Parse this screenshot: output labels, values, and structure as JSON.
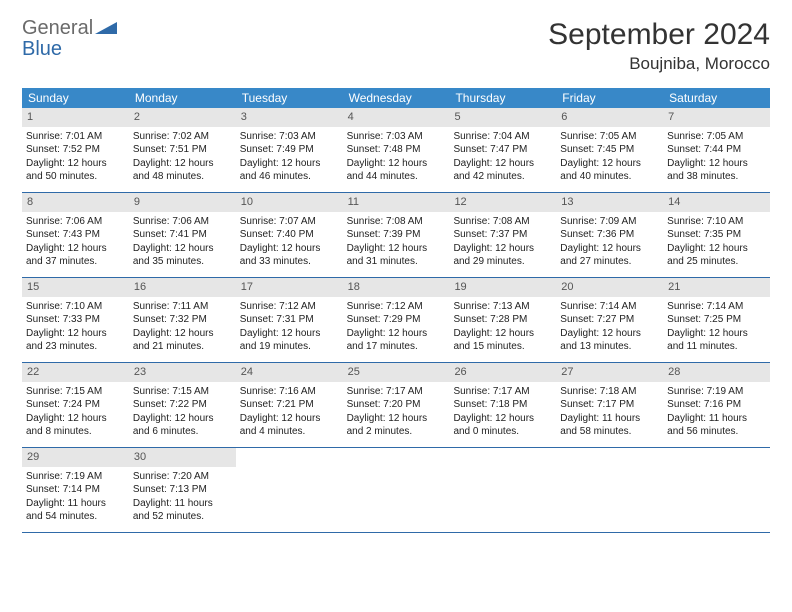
{
  "brand": {
    "part1": "General",
    "part2": "Blue"
  },
  "title": "September 2024",
  "location": "Boujniba, Morocco",
  "colors": {
    "header_bg": "#3888c8",
    "header_text": "#ffffff",
    "daynum_bg": "#e6e6e6",
    "border": "#2f6aa8",
    "text": "#222222",
    "brand_gray": "#6a6a6a",
    "brand_blue": "#2f6aa8"
  },
  "weekdays": [
    "Sunday",
    "Monday",
    "Tuesday",
    "Wednesday",
    "Thursday",
    "Friday",
    "Saturday"
  ],
  "weeks": [
    [
      {
        "n": "1",
        "sr": "Sunrise: 7:01 AM",
        "ss": "Sunset: 7:52 PM",
        "dl": "Daylight: 12 hours and 50 minutes."
      },
      {
        "n": "2",
        "sr": "Sunrise: 7:02 AM",
        "ss": "Sunset: 7:51 PM",
        "dl": "Daylight: 12 hours and 48 minutes."
      },
      {
        "n": "3",
        "sr": "Sunrise: 7:03 AM",
        "ss": "Sunset: 7:49 PM",
        "dl": "Daylight: 12 hours and 46 minutes."
      },
      {
        "n": "4",
        "sr": "Sunrise: 7:03 AM",
        "ss": "Sunset: 7:48 PM",
        "dl": "Daylight: 12 hours and 44 minutes."
      },
      {
        "n": "5",
        "sr": "Sunrise: 7:04 AM",
        "ss": "Sunset: 7:47 PM",
        "dl": "Daylight: 12 hours and 42 minutes."
      },
      {
        "n": "6",
        "sr": "Sunrise: 7:05 AM",
        "ss": "Sunset: 7:45 PM",
        "dl": "Daylight: 12 hours and 40 minutes."
      },
      {
        "n": "7",
        "sr": "Sunrise: 7:05 AM",
        "ss": "Sunset: 7:44 PM",
        "dl": "Daylight: 12 hours and 38 minutes."
      }
    ],
    [
      {
        "n": "8",
        "sr": "Sunrise: 7:06 AM",
        "ss": "Sunset: 7:43 PM",
        "dl": "Daylight: 12 hours and 37 minutes."
      },
      {
        "n": "9",
        "sr": "Sunrise: 7:06 AM",
        "ss": "Sunset: 7:41 PM",
        "dl": "Daylight: 12 hours and 35 minutes."
      },
      {
        "n": "10",
        "sr": "Sunrise: 7:07 AM",
        "ss": "Sunset: 7:40 PM",
        "dl": "Daylight: 12 hours and 33 minutes."
      },
      {
        "n": "11",
        "sr": "Sunrise: 7:08 AM",
        "ss": "Sunset: 7:39 PM",
        "dl": "Daylight: 12 hours and 31 minutes."
      },
      {
        "n": "12",
        "sr": "Sunrise: 7:08 AM",
        "ss": "Sunset: 7:37 PM",
        "dl": "Daylight: 12 hours and 29 minutes."
      },
      {
        "n": "13",
        "sr": "Sunrise: 7:09 AM",
        "ss": "Sunset: 7:36 PM",
        "dl": "Daylight: 12 hours and 27 minutes."
      },
      {
        "n": "14",
        "sr": "Sunrise: 7:10 AM",
        "ss": "Sunset: 7:35 PM",
        "dl": "Daylight: 12 hours and 25 minutes."
      }
    ],
    [
      {
        "n": "15",
        "sr": "Sunrise: 7:10 AM",
        "ss": "Sunset: 7:33 PM",
        "dl": "Daylight: 12 hours and 23 minutes."
      },
      {
        "n": "16",
        "sr": "Sunrise: 7:11 AM",
        "ss": "Sunset: 7:32 PM",
        "dl": "Daylight: 12 hours and 21 minutes."
      },
      {
        "n": "17",
        "sr": "Sunrise: 7:12 AM",
        "ss": "Sunset: 7:31 PM",
        "dl": "Daylight: 12 hours and 19 minutes."
      },
      {
        "n": "18",
        "sr": "Sunrise: 7:12 AM",
        "ss": "Sunset: 7:29 PM",
        "dl": "Daylight: 12 hours and 17 minutes."
      },
      {
        "n": "19",
        "sr": "Sunrise: 7:13 AM",
        "ss": "Sunset: 7:28 PM",
        "dl": "Daylight: 12 hours and 15 minutes."
      },
      {
        "n": "20",
        "sr": "Sunrise: 7:14 AM",
        "ss": "Sunset: 7:27 PM",
        "dl": "Daylight: 12 hours and 13 minutes."
      },
      {
        "n": "21",
        "sr": "Sunrise: 7:14 AM",
        "ss": "Sunset: 7:25 PM",
        "dl": "Daylight: 12 hours and 11 minutes."
      }
    ],
    [
      {
        "n": "22",
        "sr": "Sunrise: 7:15 AM",
        "ss": "Sunset: 7:24 PM",
        "dl": "Daylight: 12 hours and 8 minutes."
      },
      {
        "n": "23",
        "sr": "Sunrise: 7:15 AM",
        "ss": "Sunset: 7:22 PM",
        "dl": "Daylight: 12 hours and 6 minutes."
      },
      {
        "n": "24",
        "sr": "Sunrise: 7:16 AM",
        "ss": "Sunset: 7:21 PM",
        "dl": "Daylight: 12 hours and 4 minutes."
      },
      {
        "n": "25",
        "sr": "Sunrise: 7:17 AM",
        "ss": "Sunset: 7:20 PM",
        "dl": "Daylight: 12 hours and 2 minutes."
      },
      {
        "n": "26",
        "sr": "Sunrise: 7:17 AM",
        "ss": "Sunset: 7:18 PM",
        "dl": "Daylight: 12 hours and 0 minutes."
      },
      {
        "n": "27",
        "sr": "Sunrise: 7:18 AM",
        "ss": "Sunset: 7:17 PM",
        "dl": "Daylight: 11 hours and 58 minutes."
      },
      {
        "n": "28",
        "sr": "Sunrise: 7:19 AM",
        "ss": "Sunset: 7:16 PM",
        "dl": "Daylight: 11 hours and 56 minutes."
      }
    ],
    [
      {
        "n": "29",
        "sr": "Sunrise: 7:19 AM",
        "ss": "Sunset: 7:14 PM",
        "dl": "Daylight: 11 hours and 54 minutes."
      },
      {
        "n": "30",
        "sr": "Sunrise: 7:20 AM",
        "ss": "Sunset: 7:13 PM",
        "dl": "Daylight: 11 hours and 52 minutes."
      },
      {
        "empty": true
      },
      {
        "empty": true
      },
      {
        "empty": true
      },
      {
        "empty": true
      },
      {
        "empty": true
      }
    ]
  ]
}
